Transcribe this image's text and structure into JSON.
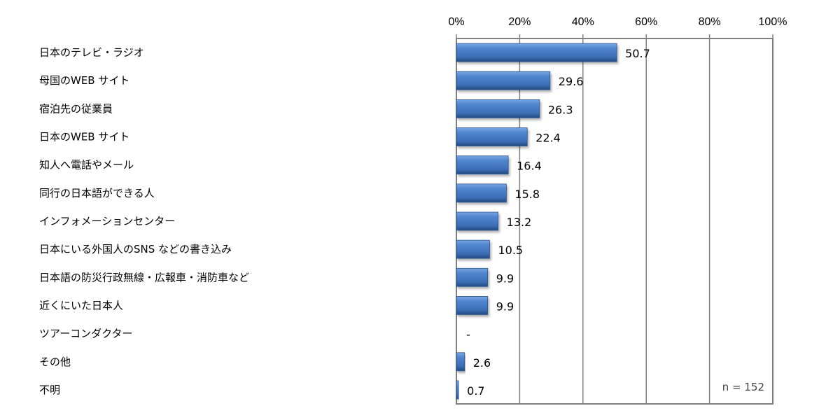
{
  "chart_data": {
    "type": "bar",
    "orientation": "horizontal",
    "categories": [
      "日本のテレビ・ラジオ",
      "母国のWEB サイト",
      "宿泊先の従業員",
      "日本のWEB サイト",
      "知人へ電話やメール",
      "同行の日本語ができる人",
      "インフォメーションセンター",
      "日本にいる外国人のSNS などの書き込み",
      "日本語の防災行政無線・広報車・消防車など",
      "近くにいた日本人",
      "ツアーコンダクター",
      "その他",
      "不明"
    ],
    "values": [
      50.7,
      29.6,
      26.3,
      22.4,
      16.4,
      15.8,
      13.2,
      10.5,
      9.9,
      9.9,
      null,
      2.6,
      0.7
    ],
    "data_labels": [
      "50.7",
      "29.6",
      "26.3",
      "22.4",
      "16.4",
      "15.8",
      "13.2",
      "10.5",
      "9.9",
      "9.9",
      "-",
      "2.6",
      "0.7"
    ],
    "xlim": [
      0,
      100
    ],
    "x_ticks": [
      "0%",
      "20%",
      "40%",
      "60%",
      "80%",
      "100%"
    ],
    "x_axis_position": "top",
    "grid": true,
    "annotation": "n = 152",
    "bar_color": "#3d6fb6",
    "title": "",
    "xlabel": "",
    "ylabel": ""
  }
}
